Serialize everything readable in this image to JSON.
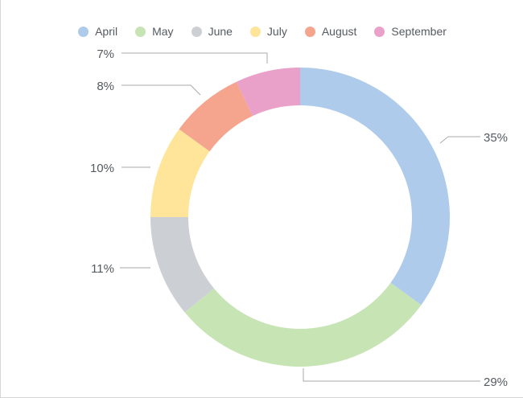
{
  "chart_data": {
    "type": "pie",
    "variant": "donut",
    "title": "",
    "legend_position": "top",
    "categories": [
      "April",
      "May",
      "June",
      "July",
      "August",
      "September"
    ],
    "values": [
      35,
      29,
      11,
      10,
      8,
      7
    ],
    "labels": [
      "35%",
      "29%",
      "11%",
      "10%",
      "8%",
      "7%"
    ],
    "colors": [
      "#aecbeb",
      "#c7e4b5",
      "#ccd0d5",
      "#fee59a",
      "#f5a48e",
      "#e9a1c9"
    ],
    "label_color": "#555a60",
    "leader_color": "#aaaaaa"
  }
}
